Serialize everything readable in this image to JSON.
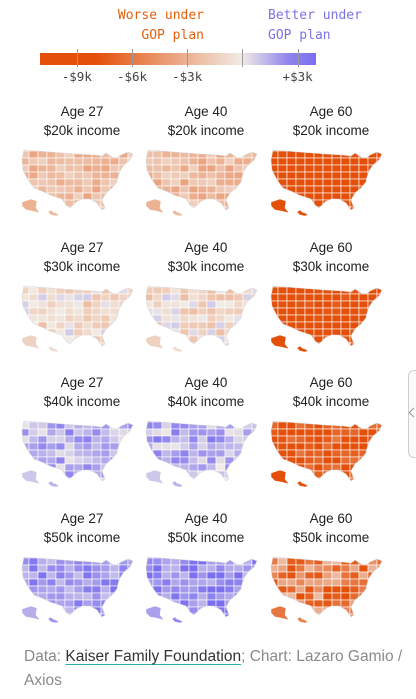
{
  "legend": {
    "worse_line1": "Worse under",
    "worse_line2": "GOP plan",
    "better_line1": "Better under",
    "better_line2": "GOP plan",
    "ticks": [
      "-$9k",
      "-$6k",
      "-$3k",
      "+$3k"
    ],
    "tick_values": [
      -9,
      -6,
      -3,
      3
    ],
    "domain": [
      -11,
      4
    ],
    "colors": {
      "worse": "#e4500a",
      "neutral": "#f1ece6",
      "better": "#7b6ff0"
    }
  },
  "chart_data": {
    "type": "heatmap",
    "description_unit": "thousand dollars change in premium tax credit",
    "facet_rows": [
      "$20k income",
      "$30k income",
      "$40k income",
      "$50k income"
    ],
    "facet_cols": [
      "Age 27",
      "Age 40",
      "Age 60"
    ],
    "panels": [
      {
        "age": "Age 27",
        "income": "$20k income",
        "typical_value": -2.5,
        "spread": 1.2
      },
      {
        "age": "Age 40",
        "income": "$20k income",
        "typical_value": -2.5,
        "spread": 1.2
      },
      {
        "age": "Age 60",
        "income": "$20k income",
        "typical_value": -9.5,
        "spread": 1.5
      },
      {
        "age": "Age 27",
        "income": "$30k income",
        "typical_value": -0.8,
        "spread": 1.6
      },
      {
        "age": "Age 40",
        "income": "$30k income",
        "typical_value": -0.8,
        "spread": 1.6
      },
      {
        "age": "Age 60",
        "income": "$30k income",
        "typical_value": -9.0,
        "spread": 1.6
      },
      {
        "age": "Age 27",
        "income": "$40k income",
        "typical_value": 1.4,
        "spread": 1.2
      },
      {
        "age": "Age 40",
        "income": "$40k income",
        "typical_value": 1.4,
        "spread": 1.4
      },
      {
        "age": "Age 60",
        "income": "$40k income",
        "typical_value": -8.0,
        "spread": 2.0
      },
      {
        "age": "Age 27",
        "income": "$50k income",
        "typical_value": 2.0,
        "spread": 0.9
      },
      {
        "age": "Age 40",
        "income": "$50k income",
        "typical_value": 2.3,
        "spread": 1.0
      },
      {
        "age": "Age 60",
        "income": "$50k income",
        "typical_value": -5.5,
        "spread": 3.0
      }
    ]
  },
  "footer": {
    "prefix": "Data: ",
    "source": "Kaiser Family Foundation",
    "suffix": "; Chart: Lazaro Gamio / Axios"
  }
}
